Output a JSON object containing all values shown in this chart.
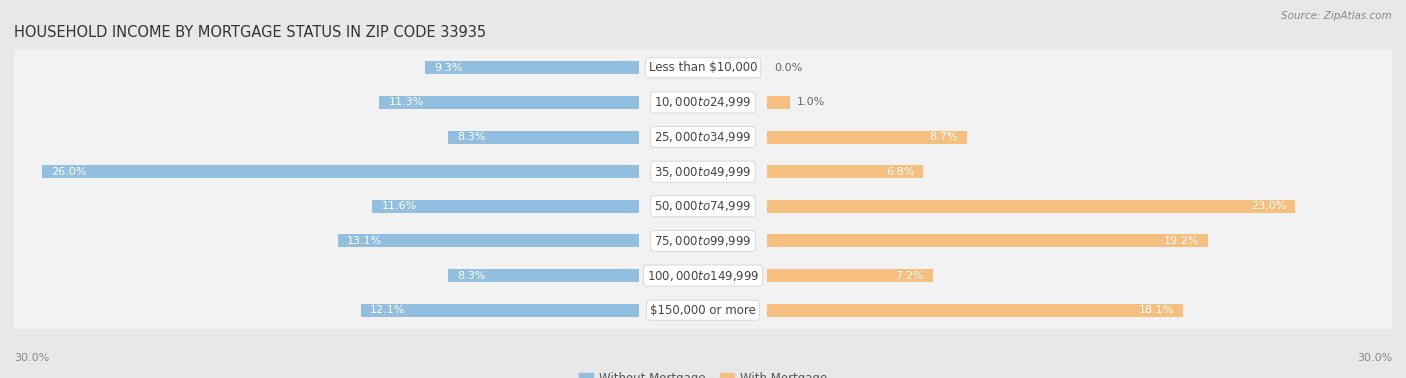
{
  "title": "HOUSEHOLD INCOME BY MORTGAGE STATUS IN ZIP CODE 33935",
  "source": "Source: ZipAtlas.com",
  "categories": [
    "Less than $10,000",
    "$10,000 to $24,999",
    "$25,000 to $34,999",
    "$35,000 to $49,999",
    "$50,000 to $74,999",
    "$75,000 to $99,999",
    "$100,000 to $149,999",
    "$150,000 or more"
  ],
  "without_mortgage": [
    9.3,
    11.3,
    8.3,
    26.0,
    11.6,
    13.1,
    8.3,
    12.1
  ],
  "with_mortgage": [
    0.0,
    1.0,
    8.7,
    6.8,
    23.0,
    19.2,
    7.2,
    18.1
  ],
  "color_without": "#92bfdf",
  "color_with": "#f5bf80",
  "background_color": "#e8e8e8",
  "row_bg_color": "#f2f2f2",
  "axis_limit": 30.0,
  "title_fontsize": 10.5,
  "source_fontsize": 7.5,
  "label_fontsize": 8.5,
  "bar_label_fontsize": 8,
  "legend_fontsize": 8.5,
  "axis_label_fontsize": 8
}
